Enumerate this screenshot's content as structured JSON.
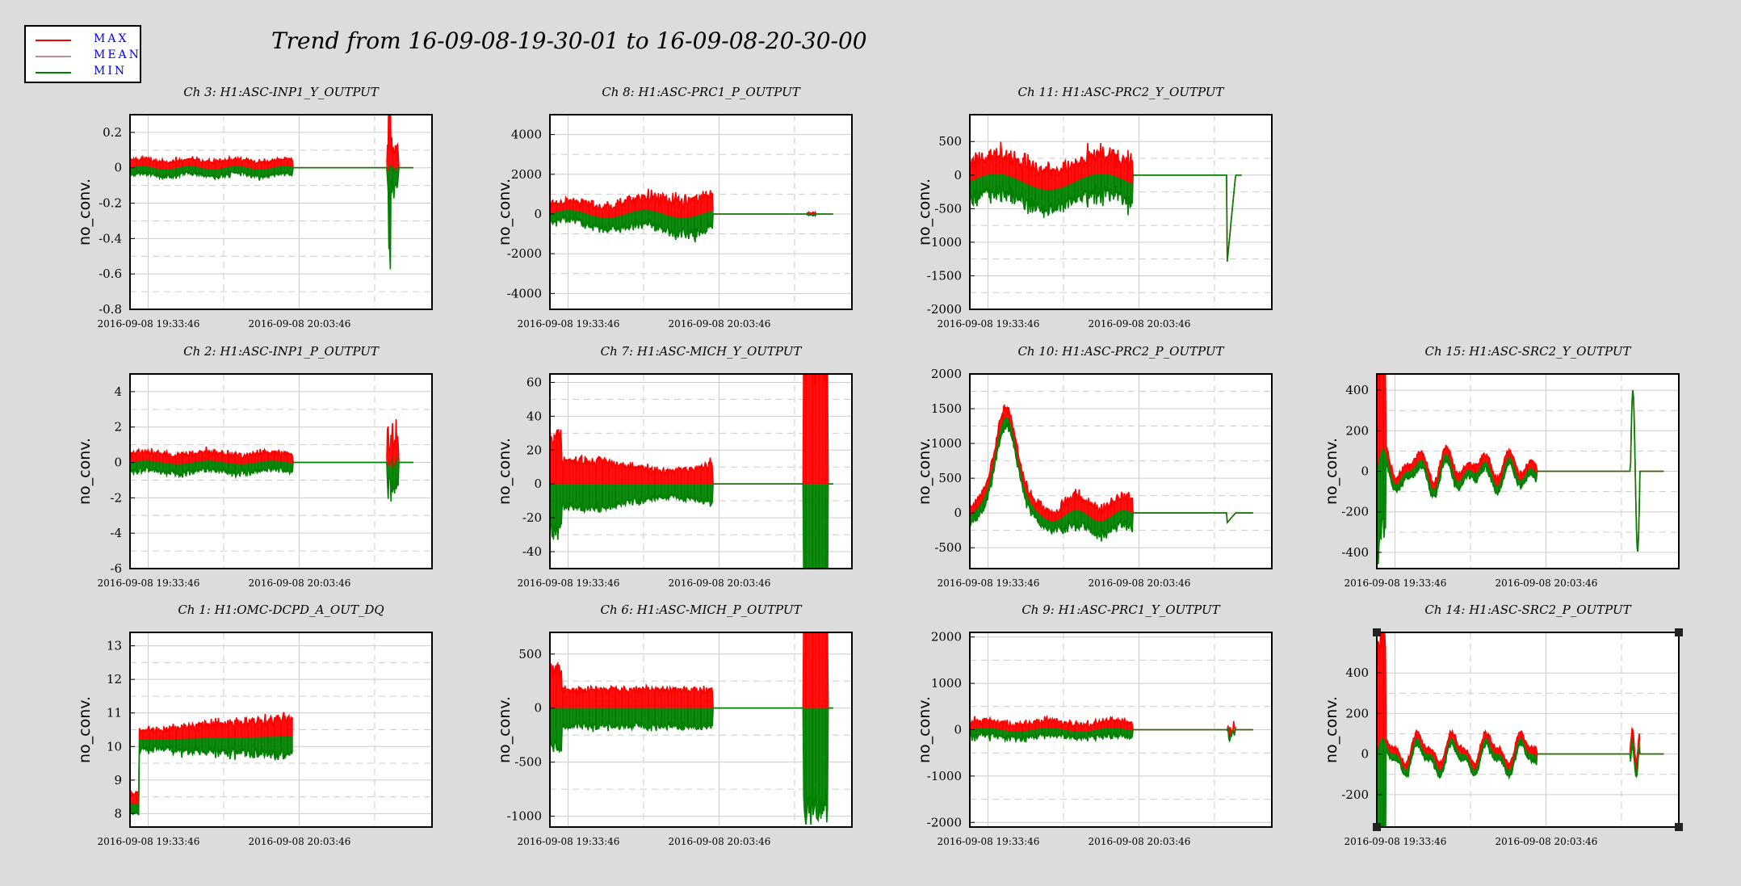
{
  "title": "Trend from 16-09-08-19-30-01 to 16-09-08-20-30-00",
  "legend": {
    "items": [
      {
        "label": "MAX",
        "color": "#ff0000"
      },
      {
        "label": "MEAN",
        "color": "#bc8f8f"
      },
      {
        "label": "MIN",
        "color": "#008000"
      }
    ]
  },
  "x_tick_labels": [
    "2016-09-08 19:33:46",
    "2016-09-08 20:03:46"
  ],
  "chart_data": [
    {
      "type": "line",
      "title": "Ch 3: H1:ASC-INP1_Y_OUTPUT",
      "ylabel": "no_conv.",
      "ylim": [
        -0.8,
        0.3
      ],
      "yticks": [
        -0.8,
        -0.6,
        -0.4,
        -0.2,
        0,
        0.2
      ],
      "yticklabels": [
        "-0.8",
        "-0.6",
        "-0.4",
        "-0.2",
        "0",
        "0.2"
      ],
      "pos": [
        0,
        0
      ],
      "pattern": "inp1y",
      "amp": 0.04,
      "base": 0
    },
    {
      "type": "line",
      "title": "Ch 8: H1:ASC-PRC1_P_OUTPUT",
      "ylabel": "no_conv.",
      "ylim": [
        -4800,
        5000
      ],
      "yticks": [
        -4000,
        -2000,
        0,
        2000,
        4000
      ],
      "yticklabels": [
        "-4000",
        "-2000",
        "0",
        "2000",
        "4000"
      ],
      "pos": [
        0,
        1
      ],
      "pattern": "prc1p",
      "amp": 600,
      "base": 0
    },
    {
      "type": "line",
      "title": "Ch 11: H1:ASC-PRC2_Y_OUTPUT",
      "ylabel": "no_conv.",
      "ylim": [
        -2000,
        900
      ],
      "yticks": [
        -2000,
        -1500,
        -1000,
        -500,
        0,
        500
      ],
      "yticklabels": [
        "-2000",
        "-1500",
        "-1000",
        "-500",
        "0",
        "500"
      ],
      "pos": [
        0,
        2
      ],
      "pattern": "prc2y",
      "amp": 280,
      "base": 0
    },
    {
      "type": "line",
      "title": "Ch 2: H1:ASC-INP1_P_OUTPUT",
      "ylabel": "no_conv.",
      "ylim": [
        -6,
        5
      ],
      "yticks": [
        -6,
        -4,
        -2,
        0,
        2,
        4
      ],
      "yticklabels": [
        "-6",
        "-4",
        "-2",
        "0",
        "2",
        "4"
      ],
      "pos": [
        1,
        0
      ],
      "pattern": "inp1p",
      "amp": 0.5,
      "base": 0
    },
    {
      "type": "line",
      "title": "Ch 7: H1:ASC-MICH_Y_OUTPUT",
      "ylabel": "no_conv.",
      "ylim": [
        -50,
        65
      ],
      "yticks": [
        -40,
        -20,
        0,
        20,
        40,
        60
      ],
      "yticklabels": [
        "-40",
        "-20",
        "0",
        "20",
        "40",
        "60"
      ],
      "pos": [
        1,
        1
      ],
      "pattern": "michy",
      "amp": 4,
      "base": 0
    },
    {
      "type": "line",
      "title": "Ch 10: H1:ASC-PRC2_P_OUTPUT",
      "ylabel": "no_conv.",
      "ylim": [
        -800,
        2000
      ],
      "yticks": [
        -500,
        0,
        500,
        1000,
        1500,
        2000
      ],
      "yticklabels": [
        "-500",
        "0",
        "500",
        "1000",
        "1500",
        "2000"
      ],
      "pos": [
        1,
        2
      ],
      "pattern": "prc2p",
      "amp": 120,
      "base": 0
    },
    {
      "type": "line",
      "title": "Ch 15: H1:ASC-SRC2_Y_OUTPUT",
      "ylabel": "no_conv.",
      "ylim": [
        -480,
        480
      ],
      "yticks": [
        -400,
        -200,
        0,
        200,
        400
      ],
      "yticklabels": [
        "-400",
        "-200",
        "0",
        "200",
        "400"
      ],
      "pos": [
        1,
        3
      ],
      "pattern": "src2y",
      "amp": 35,
      "base": 0
    },
    {
      "type": "line",
      "title": "Ch 1: H1:OMC-DCPD_A_OUT_DQ",
      "ylabel": "no_conv.",
      "ylim": [
        7.6,
        13.4
      ],
      "yticks": [
        8,
        9,
        10,
        11,
        12,
        13
      ],
      "yticklabels": [
        "8",
        "9",
        "10",
        "11",
        "12",
        "13"
      ],
      "pos": [
        2,
        0
      ],
      "pattern": "omc",
      "amp": 0.3,
      "base": 10.2
    },
    {
      "type": "line",
      "title": "Ch 6: H1:ASC-MICH_P_OUTPUT",
      "ylabel": "no_conv.",
      "ylim": [
        -1100,
        700
      ],
      "yticks": [
        -1000,
        -500,
        0,
        500
      ],
      "yticklabels": [
        "-1000",
        "-500",
        "0",
        "500"
      ],
      "pos": [
        2,
        1
      ],
      "pattern": "michp",
      "amp": 60,
      "base": 0
    },
    {
      "type": "line",
      "title": "Ch 9: H1:ASC-PRC1_Y_OUTPUT",
      "ylabel": "no_conv.",
      "ylim": [
        -2100,
        2100
      ],
      "yticks": [
        -2000,
        -1000,
        0,
        1000,
        2000
      ],
      "yticklabels": [
        "-2000",
        "-1000",
        "0",
        "1000",
        "2000"
      ],
      "pos": [
        2,
        2
      ],
      "pattern": "prc1y",
      "amp": 150,
      "base": 0
    },
    {
      "type": "line",
      "title": "Ch 14: H1:ASC-SRC2_P_OUTPUT",
      "ylabel": "no_conv.",
      "ylim": [
        -360,
        600
      ],
      "yticks": [
        -200,
        0,
        200,
        400
      ],
      "yticklabels": [
        "-200",
        "0",
        "200",
        "400"
      ],
      "pos": [
        2,
        3
      ],
      "pattern": "src2p",
      "amp": 30,
      "base": 0,
      "selected": true
    }
  ]
}
